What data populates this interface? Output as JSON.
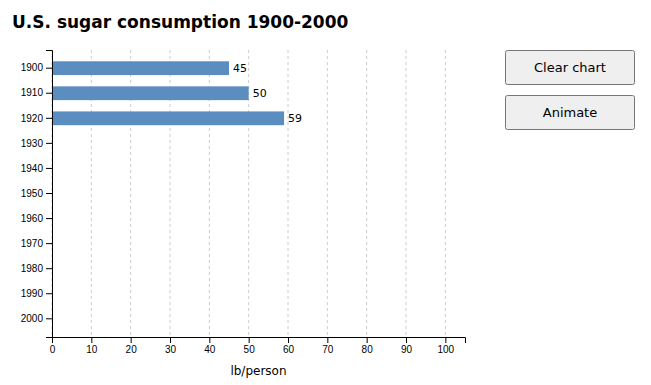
{
  "chart_data": {
    "type": "bar",
    "orientation": "horizontal",
    "title": "U.S. sugar consumption 1900-2000",
    "xlabel": "lb/person",
    "categories": [
      "1900",
      "1910",
      "1920",
      "1930",
      "1940",
      "1950",
      "1960",
      "1970",
      "1980",
      "1990",
      "2000"
    ],
    "values": [
      45,
      50,
      59,
      0,
      0,
      0,
      0,
      0,
      0,
      0,
      0
    ],
    "value_labels": [
      "45",
      "50",
      "59",
      null,
      null,
      null,
      null,
      null,
      null,
      null,
      null
    ],
    "data_labels": true,
    "color": "#5B8DC0",
    "xlim": [
      0,
      105
    ],
    "xticks": [
      0,
      10,
      20,
      30,
      40,
      50,
      60,
      70,
      80,
      90,
      100
    ],
    "grid": true
  },
  "buttons": [
    "Clear chart",
    "Animate"
  ]
}
